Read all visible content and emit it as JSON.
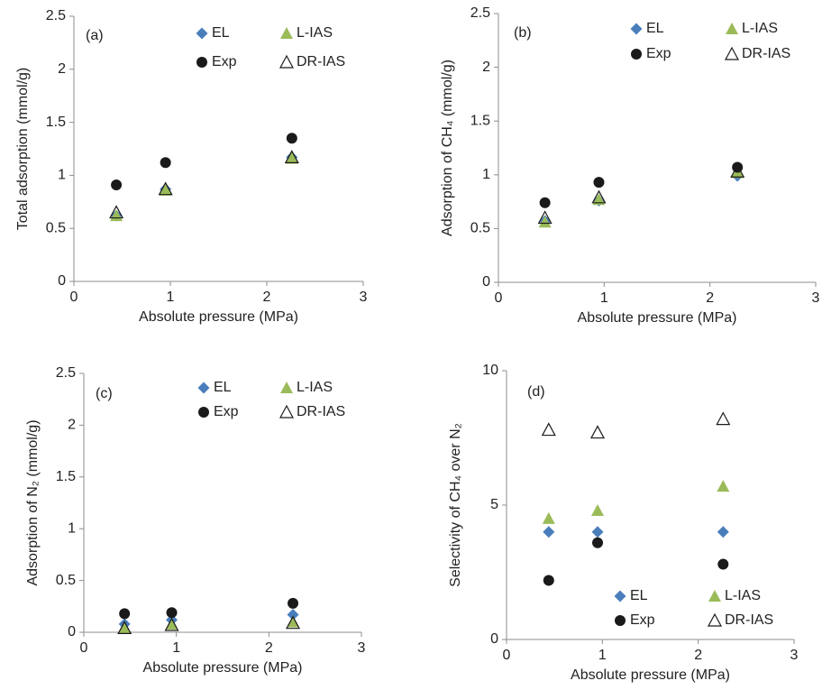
{
  "chart_data": [
    {
      "type": "scatter",
      "panel_label": "(a)",
      "xlabel": "Absolute pressure (MPa)",
      "ylabel": "Total adsorption (mmol/g)",
      "x": [
        0.44,
        0.95,
        2.26
      ],
      "xlim": [
        0,
        3
      ],
      "xticks": [
        0,
        1,
        2,
        3
      ],
      "ylim": [
        0,
        2.5
      ],
      "yticks": [
        0,
        0.5,
        1,
        1.5,
        2,
        2.5
      ],
      "legend": "upper right",
      "series": [
        {
          "name": "EL",
          "marker": "diamond",
          "color": "#4a7ebb",
          "values": [
            0.62,
            0.87,
            1.17
          ]
        },
        {
          "name": "L-IAS",
          "marker": "triangle",
          "color": "#9bbb59",
          "values": [
            0.62,
            0.86,
            1.16
          ]
        },
        {
          "name": "Exp",
          "marker": "circle",
          "color": "#1a1a1a",
          "values": [
            0.91,
            1.12,
            1.35
          ]
        },
        {
          "name": "DR-IAS",
          "marker": "open-triangle",
          "color": "#1a1a1a",
          "values": [
            0.65,
            0.87,
            1.17
          ]
        }
      ]
    },
    {
      "type": "scatter",
      "panel_label": "(b)",
      "xlabel": "Absolute pressure (MPa)",
      "ylabel": "Adsorption of CH₄ (mmol/g)",
      "x": [
        0.44,
        0.95,
        2.26
      ],
      "xlim": [
        0,
        3
      ],
      "xticks": [
        0,
        1,
        2,
        3
      ],
      "ylim": [
        0,
        2.5
      ],
      "yticks": [
        0,
        0.5,
        1,
        1.5,
        2,
        2.5
      ],
      "legend": "upper right",
      "series": [
        {
          "name": "EL",
          "marker": "diamond",
          "color": "#4a7ebb",
          "values": [
            0.57,
            0.76,
            0.99
          ]
        },
        {
          "name": "L-IAS",
          "marker": "triangle",
          "color": "#9bbb59",
          "values": [
            0.56,
            0.77,
            1.02
          ]
        },
        {
          "name": "Exp",
          "marker": "circle",
          "color": "#1a1a1a",
          "values": [
            0.74,
            0.93,
            1.07
          ]
        },
        {
          "name": "DR-IAS",
          "marker": "open-triangle",
          "color": "#1a1a1a",
          "values": [
            0.6,
            0.79,
            1.03
          ]
        }
      ]
    },
    {
      "type": "scatter",
      "panel_label": "(c)",
      "xlabel": "Absolute pressure (MPa)",
      "ylabel": "Adsorption of N₂ (mmol/g)",
      "x": [
        0.44,
        0.95,
        2.26
      ],
      "xlim": [
        0,
        3
      ],
      "xticks": [
        0,
        1,
        2,
        3
      ],
      "ylim": [
        0,
        2.5
      ],
      "yticks": [
        0,
        0.5,
        1,
        1.5,
        2,
        2.5
      ],
      "legend": "upper right",
      "series": [
        {
          "name": "EL",
          "marker": "diamond",
          "color": "#4a7ebb",
          "values": [
            0.08,
            0.12,
            0.17
          ]
        },
        {
          "name": "L-IAS",
          "marker": "triangle",
          "color": "#9bbb59",
          "values": [
            0.04,
            0.08,
            0.1
          ]
        },
        {
          "name": "Exp",
          "marker": "circle",
          "color": "#1a1a1a",
          "values": [
            0.18,
            0.19,
            0.28
          ]
        },
        {
          "name": "DR-IAS",
          "marker": "open-triangle",
          "color": "#1a1a1a",
          "values": [
            0.04,
            0.07,
            0.09
          ]
        }
      ]
    },
    {
      "type": "scatter",
      "panel_label": "(d)",
      "xlabel": "Absolute pressure (MPa)",
      "ylabel": "Selectivity of CH₄ over N₂",
      "x": [
        0.44,
        0.95,
        2.26
      ],
      "xlim": [
        0,
        3
      ],
      "xticks": [
        0,
        1,
        2,
        3
      ],
      "ylim": [
        0,
        10
      ],
      "yticks": [
        0,
        5,
        10
      ],
      "legend": "lower right",
      "series": [
        {
          "name": "EL",
          "marker": "diamond",
          "color": "#4a7ebb",
          "values": [
            4.0,
            4.0,
            4.0
          ]
        },
        {
          "name": "L-IAS",
          "marker": "triangle",
          "color": "#9bbb59",
          "values": [
            4.5,
            4.8,
            5.7
          ]
        },
        {
          "name": "Exp",
          "marker": "circle",
          "color": "#1a1a1a",
          "values": [
            2.2,
            3.6,
            2.8
          ]
        },
        {
          "name": "DR-IAS",
          "marker": "open-triangle",
          "color": "#1a1a1a",
          "values": [
            7.8,
            7.7,
            8.2
          ]
        }
      ]
    }
  ]
}
